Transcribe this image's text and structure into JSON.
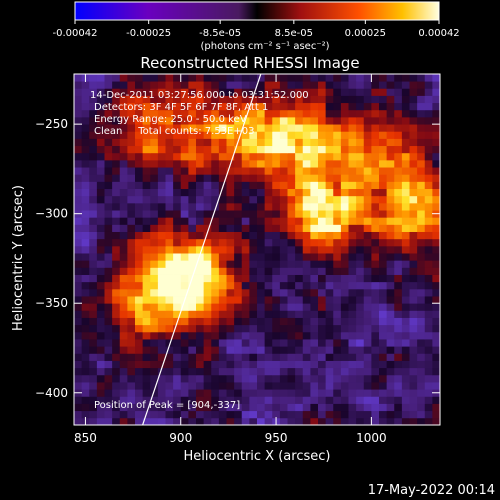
{
  "chart_data": {
    "type": "heatmap",
    "title": "Reconstructed RHESSI Image",
    "xlabel": "Heliocentric X (arcsec)",
    "ylabel": "Heliocentric Y (arcsec)",
    "x_ticks": [
      850,
      900,
      950,
      1000
    ],
    "y_ticks": [
      -250,
      -300,
      -350,
      -400
    ],
    "xlim": [
      844,
      1036
    ],
    "ylim": [
      -418,
      -222
    ],
    "colorbar": {
      "colormap": "rainbow-red-yellow",
      "min": -0.00042,
      "max": 0.00042,
      "tick_labels": [
        "-0.00042",
        "-0.00025",
        "-8.5e-05",
        "8.5e-05",
        "0.00025",
        "0.00042"
      ],
      "unit_label": "(photons cm⁻² s⁻¹ asec⁻²)"
    },
    "annotations": {
      "time_range": "14-Dec-2011 03:27:56.000 to 03:31:52.000",
      "detectors": "Detectors: 3F 4F 5F 6F 7F 8F, Att 1",
      "energy": "Energy Range: 25.0 - 50.0 keV",
      "clean": "Clean     Total counts: 7.53E+03",
      "peak": "Position of Peak = [904,-337]"
    },
    "peak_position": [
      904,
      -337
    ],
    "bright_sources": [
      {
        "x": 904,
        "y": -337,
        "level": 1.0
      },
      {
        "x": 960,
        "y": -262,
        "level": 0.85
      },
      {
        "x": 975,
        "y": -300,
        "level": 0.8
      },
      {
        "x": 925,
        "y": -258,
        "level": 0.6
      },
      {
        "x": 885,
        "y": -255,
        "level": 0.55
      },
      {
        "x": 880,
        "y": -350,
        "level": 0.6
      },
      {
        "x": 1020,
        "y": -300,
        "level": 0.65
      },
      {
        "x": 1000,
        "y": -265,
        "level": 0.5
      }
    ],
    "limb_line": [
      [
        880,
        -418
      ],
      [
        942,
        -222
      ]
    ]
  },
  "footer": {
    "date": "17-May-2022 00:14"
  }
}
